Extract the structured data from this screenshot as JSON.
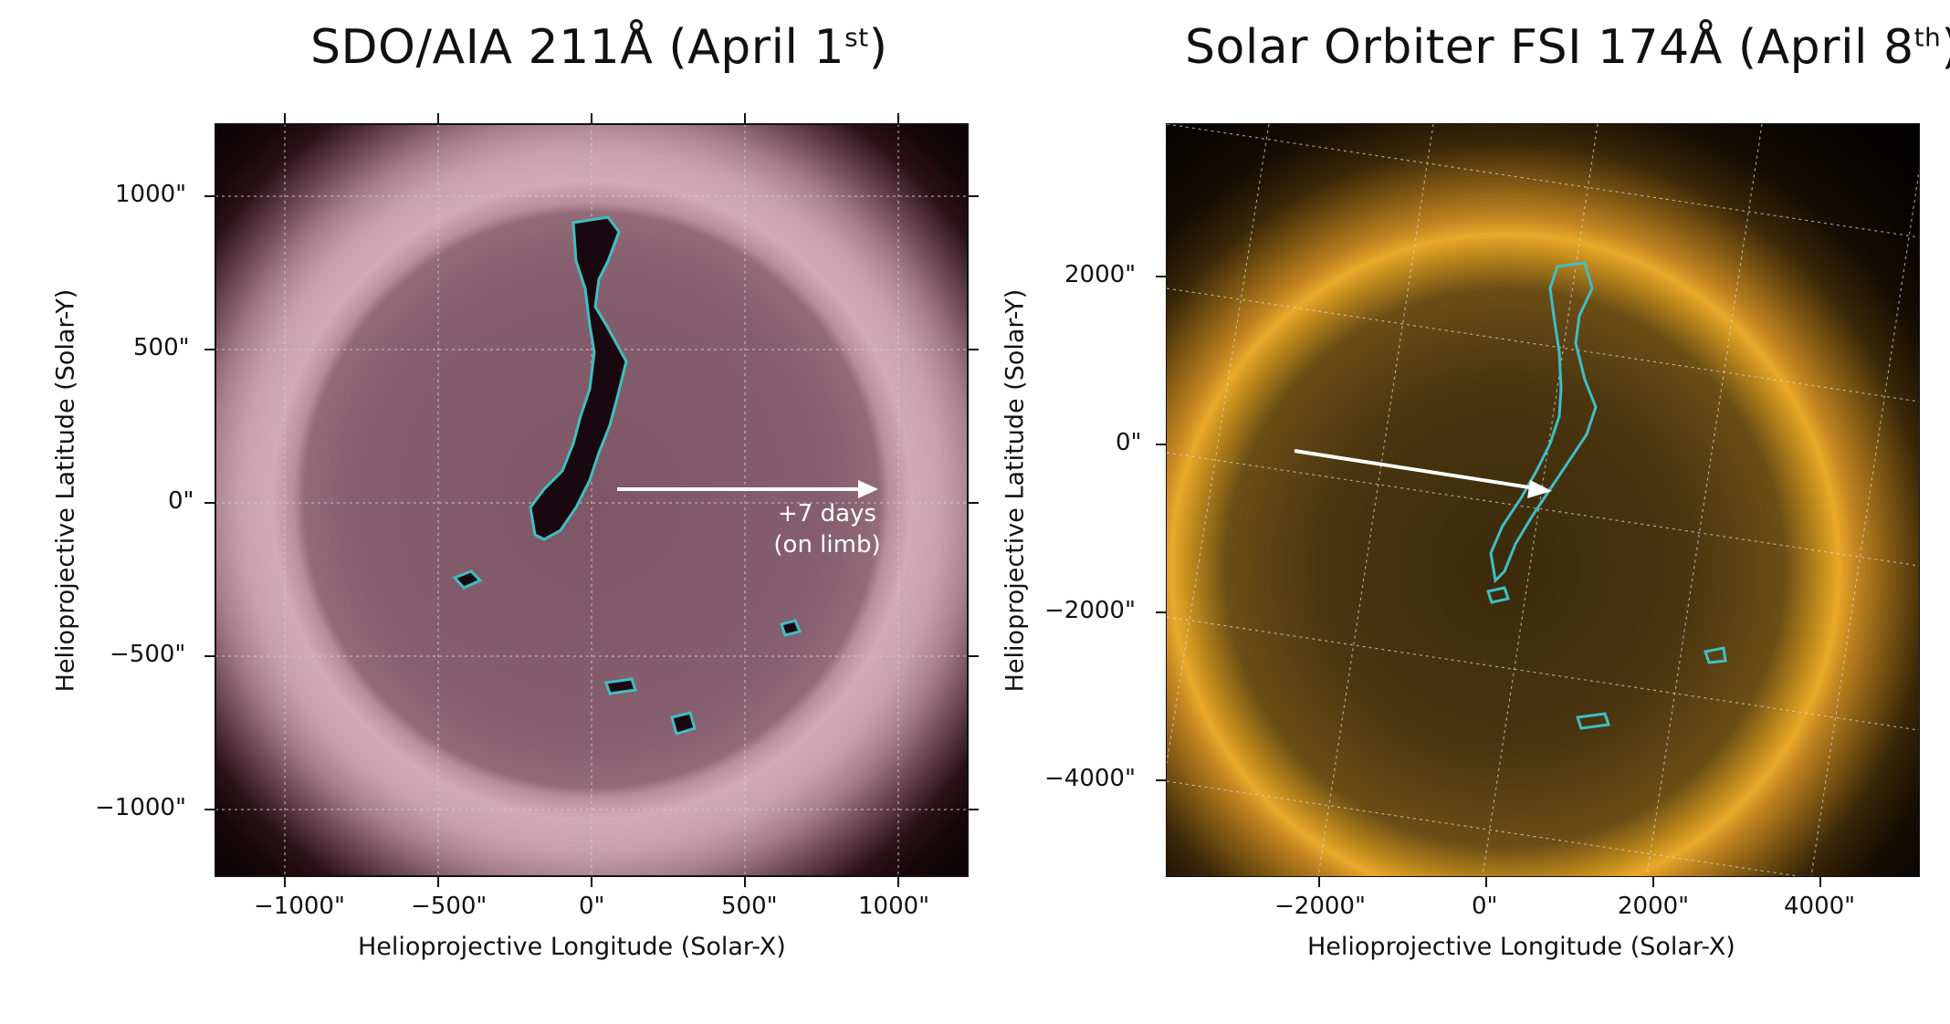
{
  "left_panel": {
    "title_main": "SDO/AIA  211Å (April 1",
    "title_sup": "st",
    "title_end": ")",
    "x_ticks": [
      "−1000\"",
      "−500\"",
      "0\"",
      "500\"",
      "1000\""
    ],
    "y_ticks": [
      "1000\"",
      "500\"",
      "0\"",
      "−500\"",
      "−1000\""
    ],
    "xlabel": "Helioprojective Longitude (Solar-X)",
    "ylabel": "Helioprojective Latitude (Solar-Y)",
    "annotation_line1": "+7 days",
    "annotation_line2": "(on limb)",
    "colors": {
      "disk": "#7e5666",
      "limb": "#d1aab7",
      "contour": "#3fbfc4",
      "arrow": "#ffffff"
    }
  },
  "right_panel": {
    "title_main": "Solar Orbiter FSI 174Å (April 8",
    "title_sup": "th",
    "title_end": ")",
    "x_ticks": [
      "−2000\"",
      "0\"",
      "2000\"",
      "4000\""
    ],
    "y_ticks": [
      "2000\"",
      "0\"",
      "−2000\"",
      "−4000\""
    ],
    "xlabel": "Helioprojective Longitude (Solar-X)",
    "ylabel": "Helioprojective Latitude (Solar-Y)",
    "colors": {
      "disk": "#4a3510",
      "limb": "#e9a92a",
      "contour": "#3fbfc4",
      "arrow": "#ffffff"
    }
  }
}
